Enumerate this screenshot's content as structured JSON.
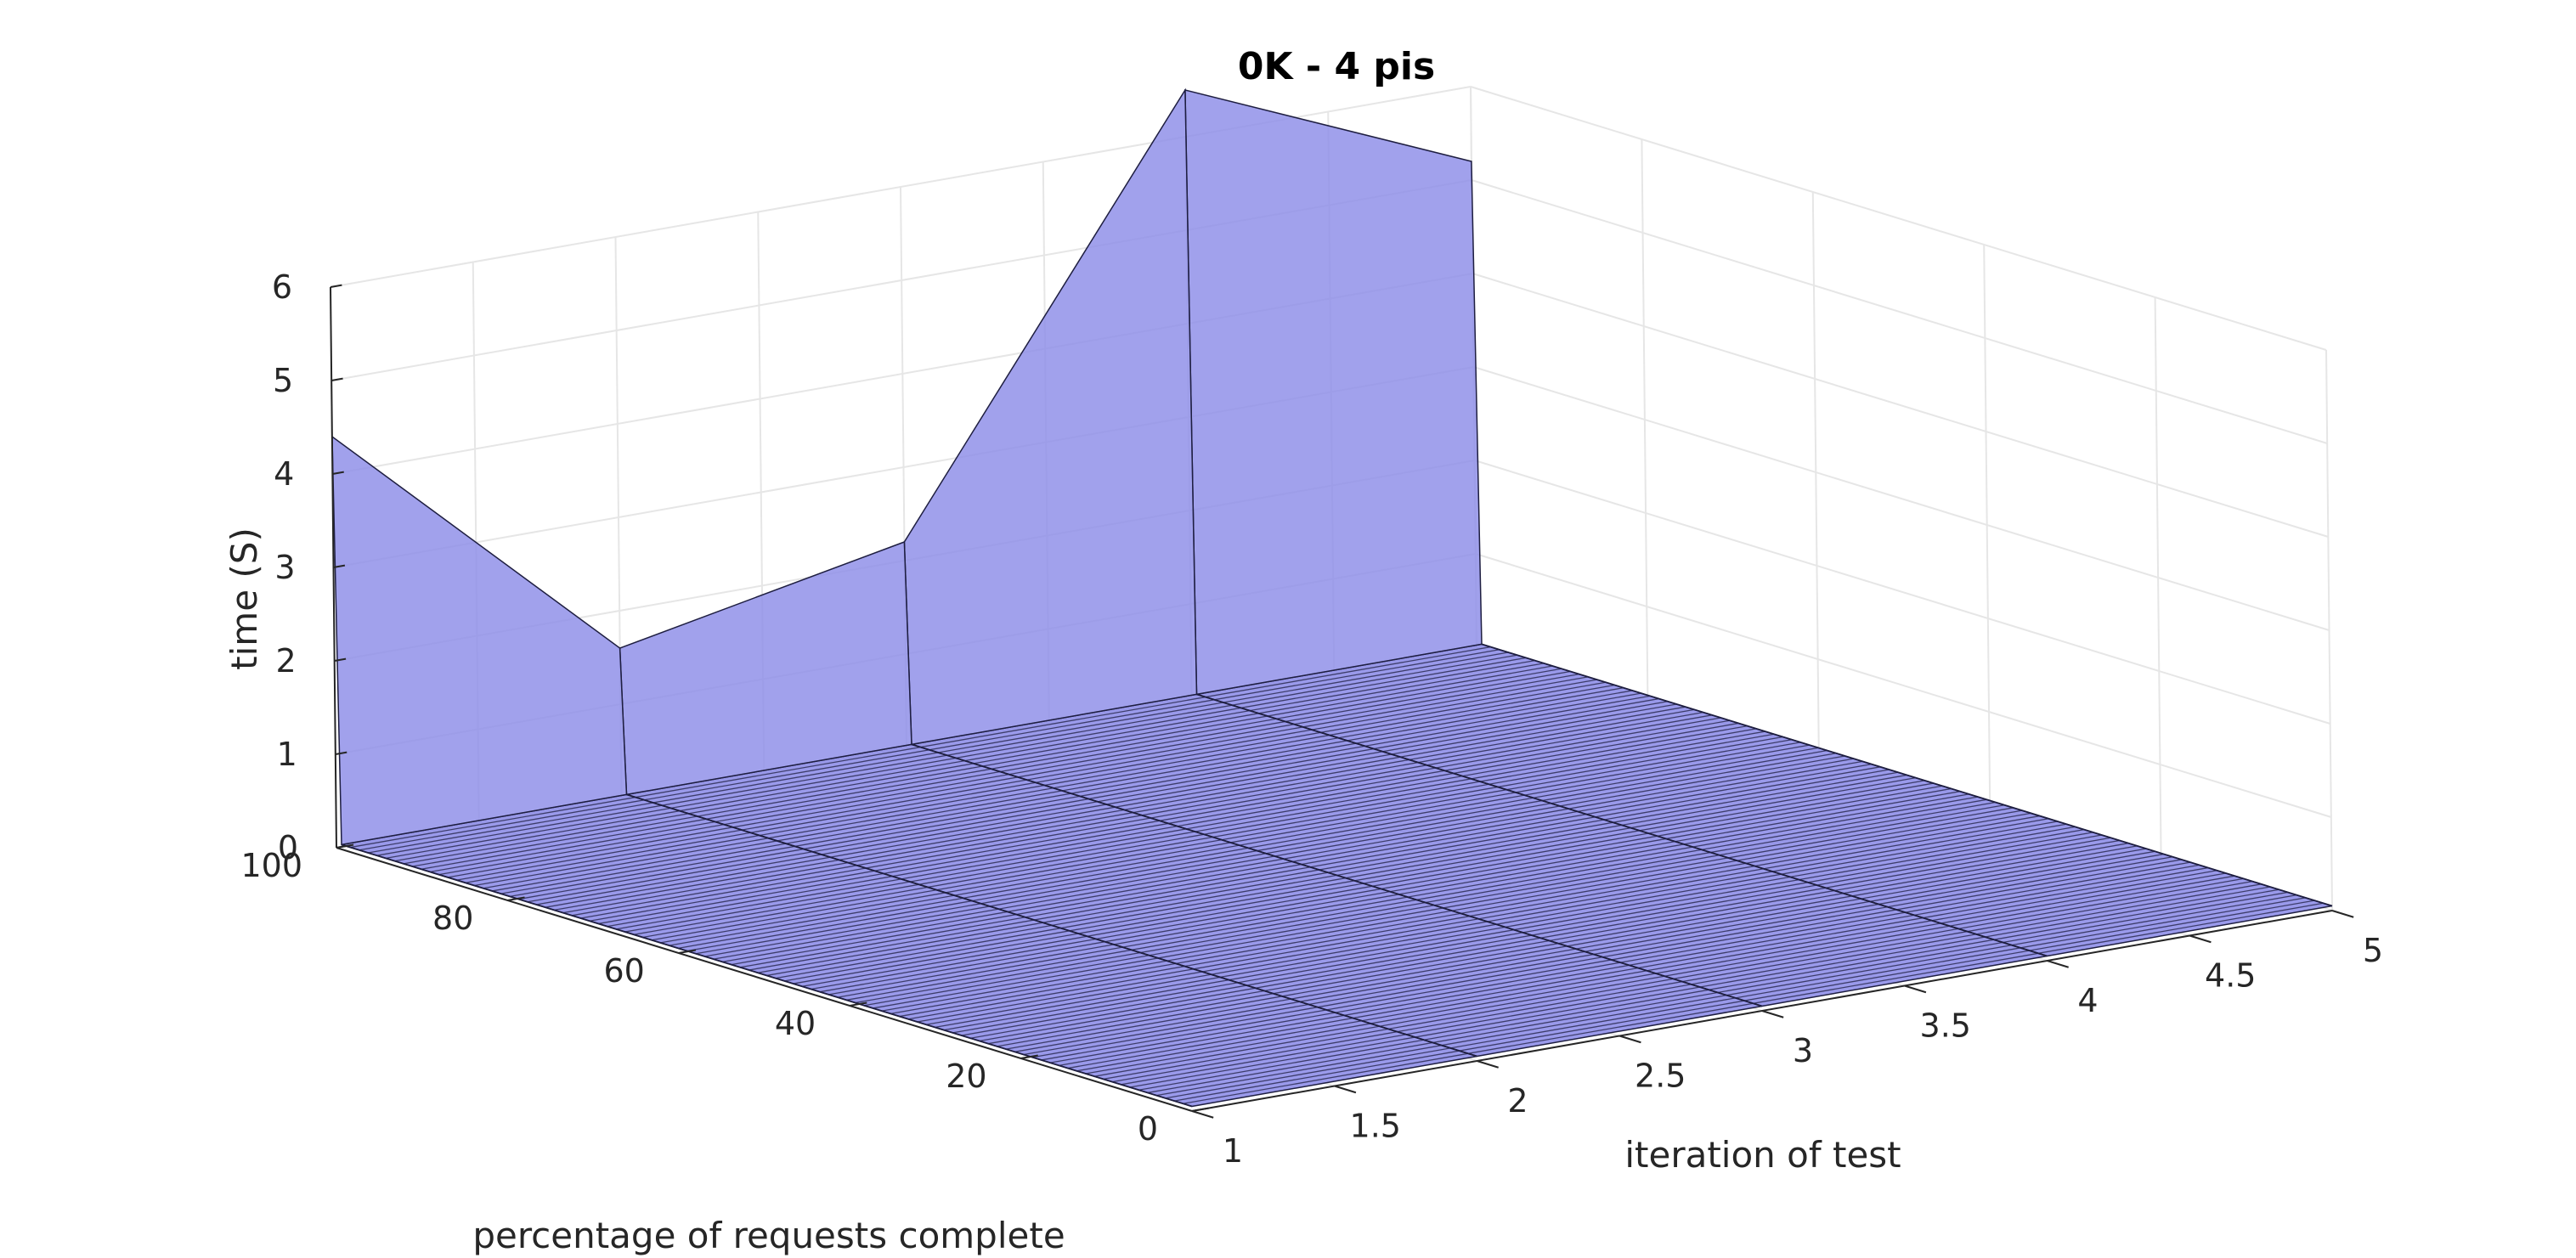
{
  "chart_data": {
    "type": "surface",
    "title": "0K - 4 pis",
    "xlabel": "iteration of test",
    "ylabel": "percentage of requests complete",
    "zlabel": "time (S)",
    "x": [
      1,
      2,
      3,
      4,
      5
    ],
    "xlim": [
      1,
      5
    ],
    "ylim": [
      0,
      100
    ],
    "zlim": [
      0,
      6
    ],
    "x_ticks": [
      "1",
      "1.5",
      "2",
      "2.5",
      "3",
      "3.5",
      "4",
      "4.5",
      "5"
    ],
    "y_ticks": [
      "0",
      "20",
      "40",
      "60",
      "80",
      "100"
    ],
    "z_ticks": [
      "0",
      "1",
      "2",
      "3",
      "4",
      "5",
      "6"
    ],
    "series": [
      {
        "values": [
          0.05,
          0.05,
          0.05,
          0.05,
          0.05
        ]
      },
      {
        "values": [
          4.4,
          1.6,
          2.2,
          6.5,
          5.2
        ]
      }
    ],
    "y_at_series": [
      0,
      100
    ],
    "grid": true,
    "surface_color": "#8c8ce8",
    "edge_color": "#1e1e40"
  }
}
